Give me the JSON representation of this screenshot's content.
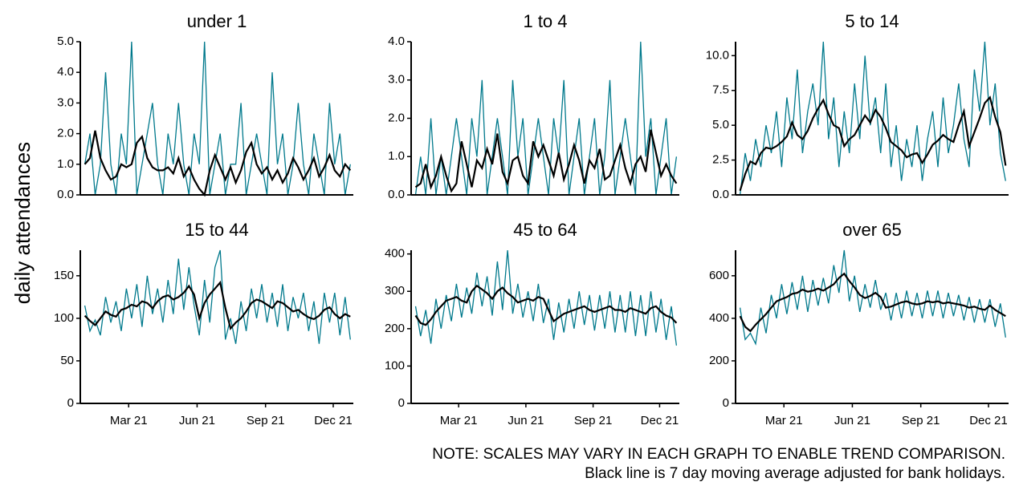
{
  "y_label": "daily attendances",
  "notes": [
    "NOTE: SCALES MAY VARY IN EACH GRAPH TO ENABLE TREND COMPARISON.",
    "Black line is 7 day moving average adjusted for bank holidays."
  ],
  "x": [
    0,
    7,
    14,
    21,
    28,
    35,
    42,
    49,
    56,
    63,
    70,
    77,
    84,
    91,
    98,
    105,
    112,
    119,
    126,
    133,
    140,
    147,
    154,
    161,
    168,
    175,
    182,
    189,
    196,
    203,
    210,
    217,
    224,
    231,
    238,
    245,
    252,
    259,
    266,
    273,
    280,
    287,
    294,
    301,
    308,
    315,
    322,
    329,
    336,
    343,
    350,
    357
  ],
  "xlim": [
    -6,
    361
  ],
  "xticks": [
    {
      "value": 59,
      "label": "Mar 21"
    },
    {
      "value": 151,
      "label": "Jun 21"
    },
    {
      "value": 243,
      "label": "Sep 21"
    },
    {
      "value": 334,
      "label": "Dec 21"
    }
  ],
  "chart_data": [
    {
      "type": "line",
      "title": "under 1",
      "ylim": [
        0,
        5
      ],
      "yticks": [
        {
          "value": 0,
          "label": "0.0"
        },
        {
          "value": 1,
          "label": "1.0"
        },
        {
          "value": 2,
          "label": "2.0"
        },
        {
          "value": 3,
          "label": "3.0"
        },
        {
          "value": 4,
          "label": "4.0"
        },
        {
          "value": 5,
          "label": "5.0"
        }
      ],
      "series": [
        {
          "color": "#00798c",
          "values": [
            1,
            2,
            0,
            1,
            4,
            1,
            0,
            2,
            1,
            5,
            0,
            1,
            2,
            3,
            1,
            0,
            2,
            1,
            3,
            1,
            0,
            2,
            1,
            5,
            0,
            1,
            2,
            0,
            1,
            1,
            3,
            0,
            1,
            2,
            1,
            0,
            4,
            1,
            2,
            0,
            1,
            3,
            1,
            0,
            2,
            1,
            0,
            3,
            1,
            2,
            0,
            1
          ]
        },
        {
          "color": "#000000",
          "values": [
            1.0,
            1.2,
            2.1,
            1.2,
            0.8,
            0.5,
            0.6,
            1.0,
            0.9,
            1.0,
            1.7,
            1.9,
            1.2,
            0.9,
            0.8,
            0.8,
            0.9,
            0.7,
            1.2,
            0.6,
            0.9,
            0.5,
            0.2,
            0.0,
            0.8,
            1.3,
            0.9,
            0.5,
            0.9,
            0.4,
            0.8,
            1.4,
            1.7,
            1.0,
            0.7,
            0.9,
            0.5,
            0.8,
            0.4,
            0.7,
            1.2,
            0.9,
            0.5,
            0.8,
            1.2,
            0.6,
            0.9,
            1.3,
            0.8,
            0.6,
            1.0,
            0.8
          ]
        }
      ]
    },
    {
      "type": "line",
      "title": "1 to 4",
      "ylim": [
        0,
        4
      ],
      "yticks": [
        {
          "value": 0,
          "label": "0.0"
        },
        {
          "value": 1,
          "label": "1.0"
        },
        {
          "value": 2,
          "label": "2.0"
        },
        {
          "value": 3,
          "label": "3.0"
        },
        {
          "value": 4,
          "label": "4.0"
        }
      ],
      "series": [
        {
          "color": "#00798c",
          "values": [
            0,
            1,
            0,
            2,
            0,
            1,
            0,
            1,
            2,
            1,
            0,
            2,
            1,
            3,
            0,
            1,
            2,
            1,
            0,
            3,
            1,
            2,
            0,
            1,
            2,
            1,
            0,
            2,
            1,
            3,
            0,
            1,
            2,
            0,
            1,
            2,
            0,
            1,
            3,
            0,
            1,
            2,
            1,
            0,
            4,
            1,
            2,
            0,
            1,
            2,
            0,
            1
          ]
        },
        {
          "color": "#000000",
          "values": [
            0.2,
            0.3,
            0.8,
            0.2,
            0.5,
            1.0,
            0.5,
            0.1,
            0.3,
            1.4,
            0.8,
            0.2,
            0.9,
            0.7,
            1.2,
            0.8,
            1.6,
            0.6,
            0.3,
            0.9,
            1.0,
            0.5,
            0.3,
            1.4,
            1.0,
            1.3,
            0.9,
            0.5,
            1.1,
            0.4,
            0.8,
            1.3,
            0.9,
            0.3,
            0.9,
            0.7,
            1.2,
            0.4,
            0.5,
            0.9,
            1.3,
            0.7,
            0.3,
            0.8,
            1.0,
            0.6,
            1.7,
            1.1,
            0.5,
            0.8,
            0.5,
            0.3
          ]
        }
      ]
    },
    {
      "type": "line",
      "title": "5 to 14",
      "ylim": [
        0,
        11
      ],
      "yticks": [
        {
          "value": 0,
          "label": "0.0"
        },
        2.5,
        {
          "value": 5,
          "label": "5.0"
        },
        7.5,
        {
          "value": 10,
          "label": "10.0"
        }
      ],
      "series": [
        {
          "color": "#00798c",
          "values": [
            0,
            3,
            1,
            4,
            2,
            5,
            3,
            6,
            2,
            7,
            4,
            9,
            3,
            6,
            8,
            5,
            11,
            4,
            7,
            2,
            6,
            3,
            8,
            4,
            10,
            5,
            7,
            3,
            8,
            2,
            5,
            1,
            4,
            2,
            5,
            1,
            4,
            6,
            2,
            7,
            3,
            5,
            8,
            4,
            2,
            9,
            6,
            11,
            5,
            8,
            3,
            1
          ]
        },
        {
          "color": "#000000",
          "values": [
            0.3,
            1.5,
            2.4,
            2.2,
            3.0,
            3.4,
            3.3,
            3.5,
            3.8,
            4.2,
            5.2,
            4.3,
            4.0,
            4.6,
            5.5,
            6.2,
            6.8,
            5.8,
            5.0,
            4.8,
            3.5,
            4.0,
            4.3,
            5.0,
            5.7,
            5.2,
            6.1,
            5.6,
            4.8,
            3.8,
            3.5,
            3.2,
            2.7,
            2.9,
            3.0,
            2.3,
            2.9,
            3.6,
            3.9,
            4.3,
            4.0,
            3.8,
            5.0,
            6.0,
            3.5,
            4.5,
            5.5,
            6.6,
            7.0,
            5.6,
            4.5,
            2.1
          ]
        }
      ]
    },
    {
      "type": "line",
      "title": "15 to 44",
      "ylim": [
        0,
        180
      ],
      "yticks": [
        0,
        50,
        100,
        150
      ],
      "series": [
        {
          "color": "#00798c",
          "values": [
            115,
            85,
            98,
            80,
            125,
            95,
            120,
            85,
            135,
            100,
            140,
            90,
            150,
            105,
            135,
            95,
            145,
            105,
            170,
            110,
            160,
            115,
            80,
            145,
            95,
            160,
            180,
            75,
            100,
            70,
            120,
            85,
            135,
            100,
            140,
            95,
            130,
            90,
            140,
            85,
            125,
            100,
            130,
            85,
            120,
            70,
            130,
            95,
            130,
            80,
            125,
            75
          ]
        },
        {
          "color": "#000000",
          "values": [
            103,
            97,
            92,
            100,
            108,
            104,
            102,
            110,
            112,
            116,
            114,
            120,
            118,
            112,
            120,
            125,
            127,
            122,
            125,
            130,
            138,
            128,
            100,
            118,
            128,
            135,
            142,
            112,
            88,
            95,
            100,
            108,
            118,
            122,
            120,
            116,
            112,
            120,
            118,
            113,
            108,
            110,
            105,
            101,
            99,
            103,
            110,
            113,
            105,
            100,
            105,
            102
          ]
        }
      ]
    },
    {
      "type": "line",
      "title": "45 to 64",
      "ylim": [
        0,
        410
      ],
      "yticks": [
        0,
        100,
        200,
        300,
        400
      ],
      "series": [
        {
          "color": "#00798c",
          "values": [
            260,
            180,
            250,
            160,
            280,
            200,
            290,
            220,
            320,
            230,
            310,
            240,
            350,
            260,
            340,
            235,
            380,
            250,
            410,
            240,
            320,
            230,
            300,
            220,
            320,
            215,
            280,
            170,
            270,
            190,
            280,
            200,
            300,
            210,
            290,
            195,
            290,
            200,
            300,
            190,
            290,
            190,
            300,
            180,
            290,
            180,
            300,
            190,
            280,
            170,
            260,
            155
          ]
        },
        {
          "color": "#000000",
          "values": [
            235,
            215,
            210,
            225,
            245,
            260,
            275,
            280,
            285,
            275,
            270,
            300,
            315,
            305,
            295,
            280,
            300,
            310,
            295,
            285,
            270,
            275,
            280,
            275,
            285,
            280,
            250,
            220,
            230,
            240,
            245,
            250,
            255,
            260,
            250,
            245,
            250,
            255,
            260,
            250,
            250,
            245,
            255,
            250,
            245,
            240,
            255,
            260,
            245,
            235,
            230,
            215
          ]
        }
      ]
    },
    {
      "type": "line",
      "title": "over 65",
      "ylim": [
        0,
        720
      ],
      "yticks": [
        0,
        200,
        400,
        600
      ],
      "series": [
        {
          "color": "#00798c",
          "values": [
            450,
            300,
            330,
            280,
            450,
            330,
            510,
            400,
            560,
            420,
            570,
            440,
            600,
            430,
            580,
            460,
            590,
            470,
            650,
            520,
            720,
            480,
            600,
            430,
            560,
            450,
            580,
            440,
            520,
            390,
            520,
            400,
            530,
            410,
            520,
            400,
            530,
            410,
            530,
            400,
            520,
            410,
            510,
            390,
            500,
            380,
            490,
            380,
            490,
            360,
            470,
            310
          ]
        },
        {
          "color": "#000000",
          "values": [
            410,
            360,
            340,
            370,
            395,
            420,
            450,
            480,
            490,
            500,
            515,
            520,
            535,
            525,
            530,
            540,
            530,
            545,
            560,
            590,
            610,
            575,
            545,
            510,
            495,
            505,
            520,
            500,
            450,
            455,
            465,
            475,
            480,
            470,
            465,
            470,
            480,
            475,
            480,
            470,
            475,
            470,
            465,
            460,
            450,
            455,
            445,
            440,
            460,
            440,
            425,
            410
          ]
        }
      ]
    }
  ]
}
